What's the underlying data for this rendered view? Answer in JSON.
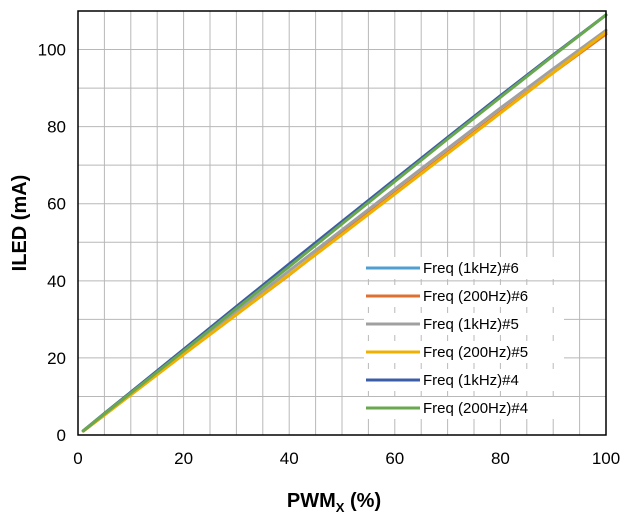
{
  "chart_data": {
    "type": "line",
    "xlabel": "PWM",
    "xlabel_subscript": "X",
    "xlabel_suffix": " (%)",
    "ylabel": "ILED (mA)",
    "xlim": [
      0,
      100
    ],
    "ylim": [
      0,
      110
    ],
    "x_ticks": [
      0,
      20,
      40,
      60,
      80,
      100
    ],
    "y_ticks": [
      0,
      20,
      40,
      60,
      80,
      100
    ],
    "x_tick_labels": [
      "0",
      "20",
      "40",
      "60",
      "80",
      "100"
    ],
    "y_tick_labels": [
      "0",
      "20",
      "40",
      "60",
      "80",
      "100"
    ],
    "x_minor_step": 5,
    "y_minor_step": 10,
    "grid": true,
    "legend_position": "bottom-right",
    "x": [
      1,
      5,
      10,
      20,
      30,
      40,
      50,
      60,
      70,
      80,
      90,
      100
    ],
    "series": [
      {
        "name": "Freq (1kHz)#6",
        "color": "#4f9fd0",
        "values": [
          1.1,
          5.5,
          11.0,
          22.0,
          33.0,
          44.0,
          55.0,
          66.0,
          77.0,
          88.0,
          98.5,
          109.0
        ]
      },
      {
        "name": "Freq (200Hz)#6",
        "color": "#e07030",
        "values": [
          1.0,
          5.2,
          10.5,
          21.0,
          31.3,
          41.5,
          52.3,
          62.8,
          73.3,
          83.8,
          94.0,
          104.0
        ]
      },
      {
        "name": "Freq (1kHz)#5",
        "color": "#a0a0a0",
        "values": [
          1.05,
          5.3,
          10.6,
          21.2,
          31.9,
          42.6,
          53.2,
          63.8,
          74.3,
          84.8,
          95.0,
          105.0
        ]
      },
      {
        "name": "Freq (200Hz)#5",
        "color": "#f0b000",
        "values": [
          1.0,
          5.2,
          10.4,
          20.9,
          31.2,
          41.6,
          52.0,
          62.5,
          73.0,
          83.5,
          94.0,
          104.5
        ]
      },
      {
        "name": "Freq (1kHz)#4",
        "color": "#3c5ca8",
        "values": [
          1.1,
          5.6,
          11.1,
          22.2,
          33.3,
          44.4,
          55.4,
          66.3,
          77.2,
          88.0,
          98.6,
          109.0
        ]
      },
      {
        "name": "Freq (200Hz)#4",
        "color": "#6aa84f",
        "values": [
          1.1,
          5.5,
          10.9,
          21.8,
          32.8,
          43.7,
          54.8,
          65.8,
          76.8,
          87.6,
          98.4,
          109.0
        ]
      }
    ]
  }
}
